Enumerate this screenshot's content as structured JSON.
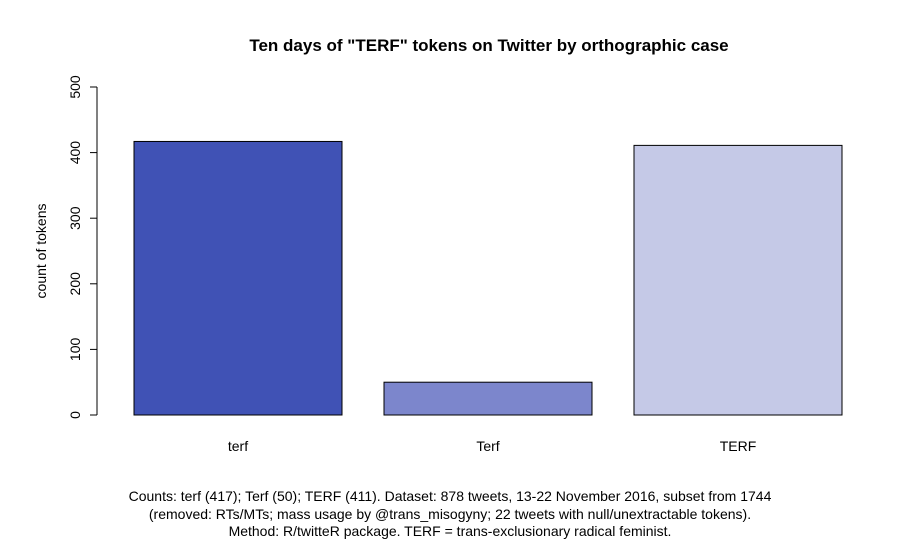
{
  "chart_data": {
    "type": "bar",
    "title": "Ten days of \"TERF\" tokens on Twitter by orthographic case",
    "xlabel": "",
    "ylabel": "count of tokens",
    "categories": [
      "terf",
      "Terf",
      "TERF"
    ],
    "values": [
      417,
      50,
      411
    ],
    "colors": [
      "#4052b5",
      "#7c86cc",
      "#c5c9e7"
    ],
    "ylim": [
      0,
      500
    ],
    "yticks": [
      0,
      100,
      200,
      300,
      400,
      500
    ],
    "grid": false,
    "legend": "none"
  },
  "caption": {
    "line1": "Counts: terf (417); Terf (50); TERF (411). Dataset: 878 tweets, 13-22 November 2016, subset from 1744",
    "line2": "(removed: RTs/MTs; mass usage by @trans_misogyny; 22 tweets with null/unextractable tokens).",
    "line3": "Method: R/twitteR package. TERF = trans-exclusionary radical feminist."
  }
}
